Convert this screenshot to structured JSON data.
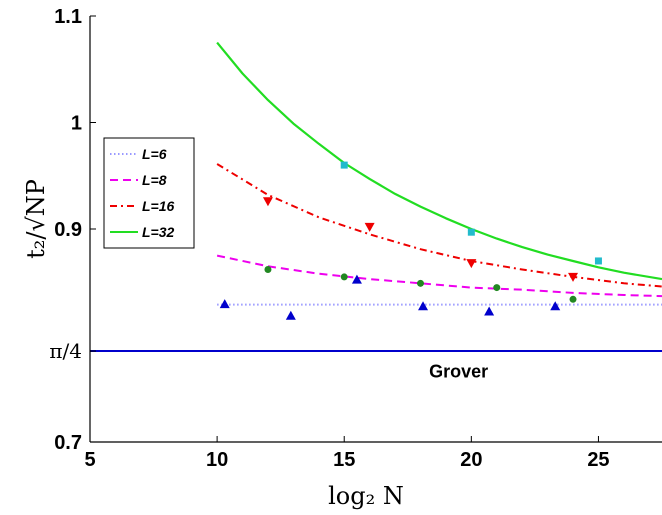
{
  "chart_data": {
    "type": "line",
    "xlabel": "log₂ N",
    "ylabel": "t₂/√NP",
    "xlim": [
      5,
      27.5
    ],
    "ylim": [
      0.7,
      1.1
    ],
    "x_ticks": [
      5,
      10,
      15,
      20,
      25
    ],
    "y_ticks": [
      {
        "value": 0.7,
        "label": "0.7"
      },
      {
        "value": 0.785398,
        "label": "π/4"
      },
      {
        "value": 0.9,
        "label": "0.9"
      },
      {
        "value": 1.0,
        "label": "1"
      },
      {
        "value": 1.1,
        "label": "1.1"
      }
    ],
    "grid": false,
    "legend_position": "left",
    "series": [
      {
        "name": "L=6",
        "color": "#9999ff",
        "style": "dotted",
        "curve": {
          "x": [
            10,
            15,
            20,
            27.5
          ],
          "y": [
            0.829,
            0.829,
            0.829,
            0.829
          ]
        },
        "markers": {
          "shape": "triangle-up",
          "color": "#0000cc",
          "x": [
            10.3,
            12.9,
            15.5,
            18.1,
            20.7,
            23.3
          ],
          "y": [
            0.8295,
            0.8185,
            0.8525,
            0.8275,
            0.8225,
            0.8275
          ]
        }
      },
      {
        "name": "L=8",
        "color": "#ee00ee",
        "style": "dashed",
        "curve": {
          "x": [
            10,
            12,
            14,
            16,
            18,
            20,
            22,
            24,
            26,
            27.5
          ],
          "y": [
            0.875,
            0.865,
            0.858,
            0.853,
            0.849,
            0.845,
            0.843,
            0.84,
            0.838,
            0.837
          ]
        },
        "markers": {
          "shape": "circle",
          "color": "#228822",
          "x": [
            12,
            15,
            18,
            21,
            24
          ],
          "y": [
            0.862,
            0.855,
            0.849,
            0.845,
            0.834
          ]
        }
      },
      {
        "name": "L=16",
        "color": "#ee0000",
        "style": "dashdot",
        "curve": {
          "x": [
            10,
            12,
            14,
            16,
            18,
            20,
            22,
            24,
            26,
            27.5
          ],
          "y": [
            0.961,
            0.932,
            0.911,
            0.895,
            0.881,
            0.87,
            0.862,
            0.855,
            0.849,
            0.846
          ]
        },
        "markers": {
          "shape": "triangle-down",
          "color": "#ee0000",
          "x": [
            12,
            16,
            20,
            24
          ],
          "y": [
            0.926,
            0.902,
            0.868,
            0.855
          ]
        }
      },
      {
        "name": "L=32",
        "color": "#22dd22",
        "style": "solid",
        "curve": {
          "x": [
            10,
            11,
            12,
            13,
            14,
            15,
            16,
            17,
            18,
            19,
            20,
            21,
            22,
            23,
            24,
            25,
            26,
            27.5
          ],
          "y": [
            1.075,
            1.046,
            1.021,
            0.999,
            0.98,
            0.962,
            0.947,
            0.933,
            0.921,
            0.91,
            0.9,
            0.891,
            0.883,
            0.876,
            0.87,
            0.864,
            0.859,
            0.853
          ]
        },
        "markers": {
          "shape": "square",
          "color": "#22bbcc",
          "x": [
            15,
            20,
            25
          ],
          "y": [
            0.96,
            0.897,
            0.87
          ]
        }
      }
    ],
    "reference_line": {
      "y": 0.785398,
      "color": "#0000cc"
    },
    "annotations": [
      {
        "text": "Grover",
        "x": 19.5,
        "y": 0.77
      }
    ]
  }
}
